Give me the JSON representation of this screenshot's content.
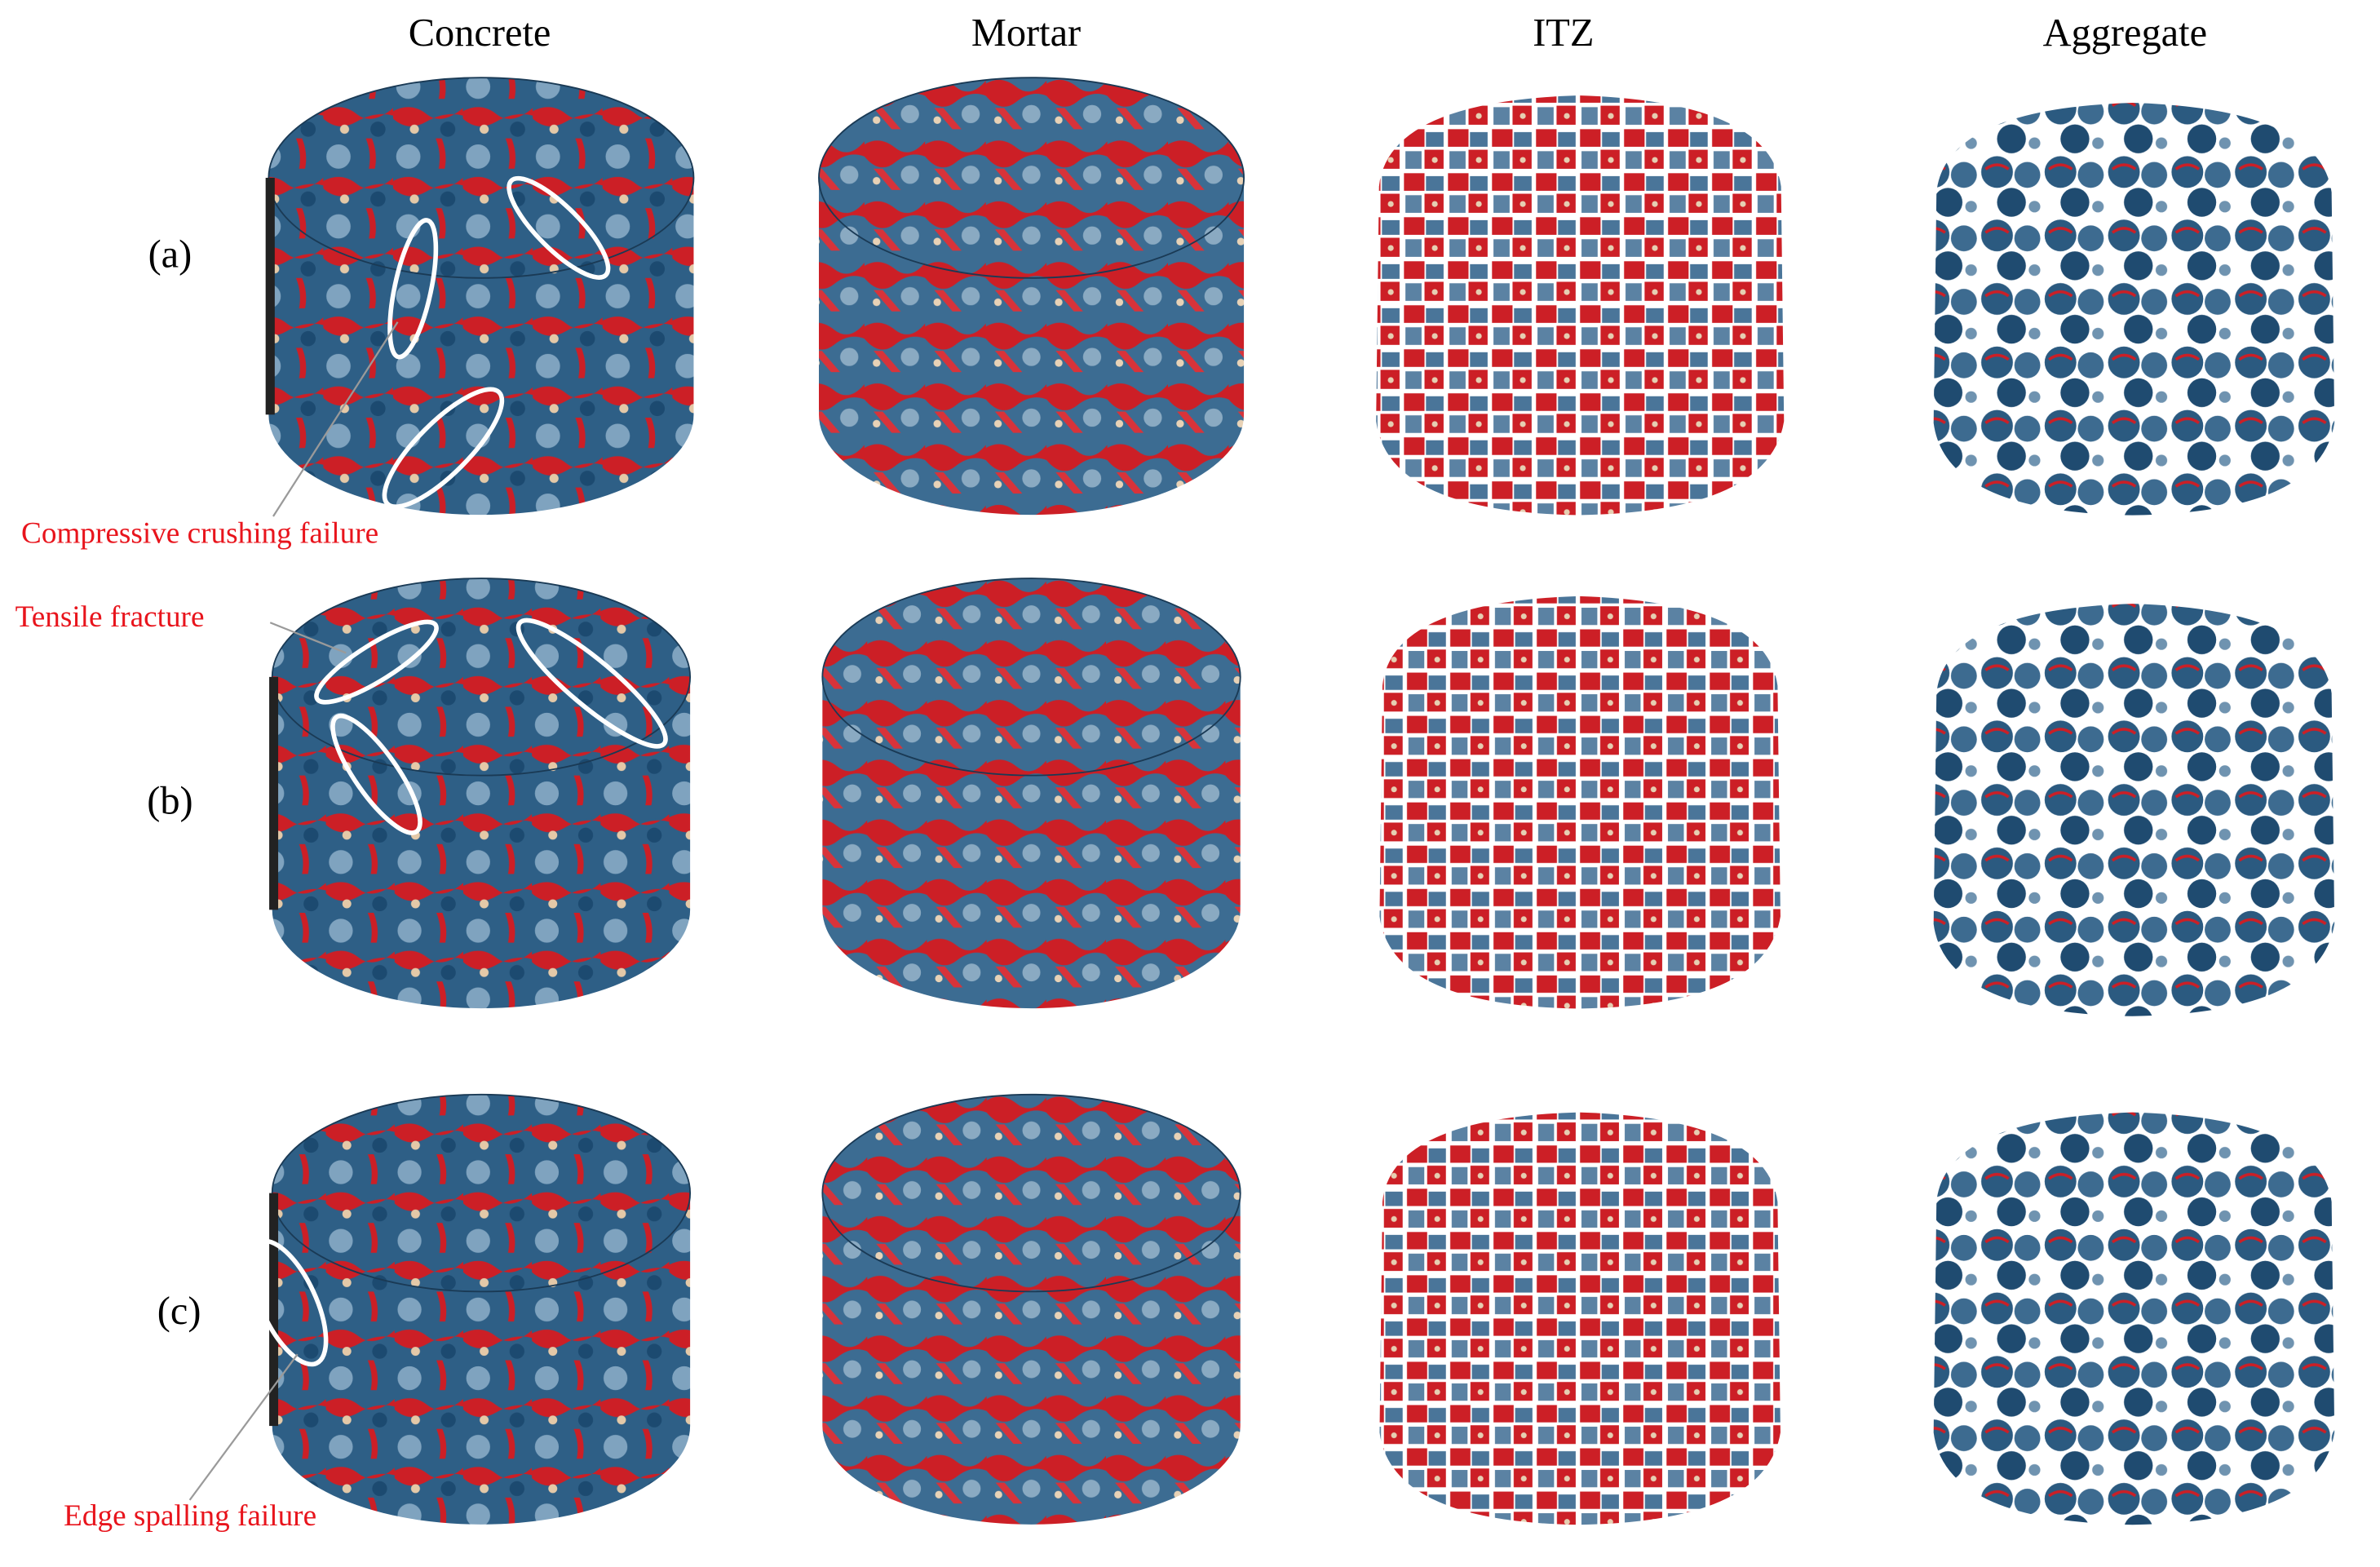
{
  "columns": [
    "Concrete",
    "Mortar",
    "ITZ",
    "Aggregate"
  ],
  "rows": [
    "(a)",
    "(b)",
    "(c)"
  ],
  "annotations": [
    "Compressive crushing failure",
    "Tensile fracture",
    "Edge spalling failure"
  ]
}
